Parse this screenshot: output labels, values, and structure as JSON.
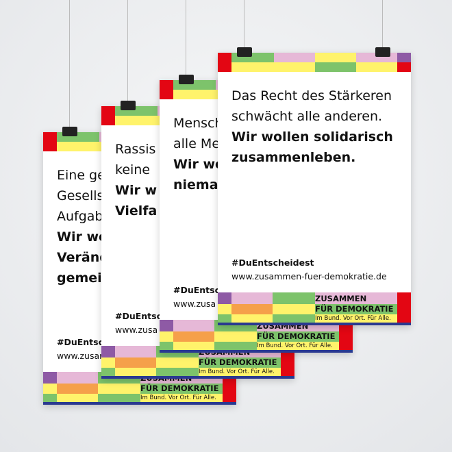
{
  "posters": [
    {
      "lines": [
        "Eine ge",
        "Gesells",
        "Aufgab"
      ],
      "bold_lines": [
        "Wir wo",
        "Veränd",
        "gemein"
      ],
      "hashtag": "#DuEntsch",
      "url": "www.zusam",
      "logo": {
        "line1": "ZUSAMMEN",
        "line2": "FÜR DEMOKRATIE",
        "tagline": "Im Bund. Vor Ort. Für Alle."
      }
    },
    {
      "lines": [
        "Rassis",
        "keine"
      ],
      "bold_lines": [
        "Wir w",
        "Vielfa"
      ],
      "hashtag": "#DuEntsch",
      "url": "www.zusa",
      "logo": {
        "line1": "ZUSAMMEN",
        "line2": "FÜR DEMOKRATIE",
        "tagline": "Im Bund. Vor Ort. Für Alle."
      }
    },
    {
      "lines": [
        "Mensch",
        "alle Me"
      ],
      "bold_lines": [
        "Wir wo",
        "nieman"
      ],
      "hashtag": "#DuEntsch",
      "url": "www.zusa",
      "logo": {
        "line1": "ZUSAMMEN",
        "line2": "FÜR DEMOKRATIE",
        "tagline": "Im Bund. Vor Ort. Für Alle."
      }
    },
    {
      "lines": [
        "Das Recht des Stärkeren",
        "schwächt alle anderen."
      ],
      "bold_lines": [
        "Wir wollen solidarisch",
        "zusammenleben."
      ],
      "hashtag": "#DuEntscheidest",
      "url": "www.zusammen-fuer-demokratie.de",
      "logo": {
        "line1": "ZUSAMMEN",
        "line2": "FÜR DEMOKRATIE",
        "tagline": "Im Bund. Vor Ort. Für Alle."
      }
    }
  ]
}
